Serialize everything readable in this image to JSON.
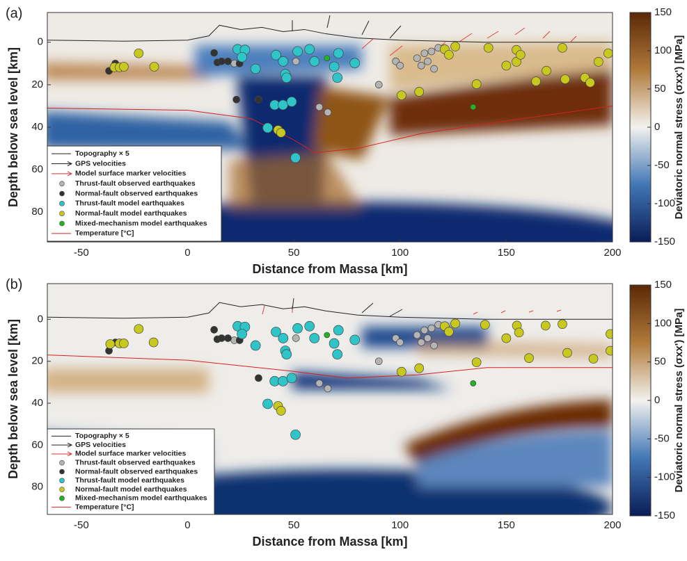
{
  "chart_data": [
    {
      "type": "scatter",
      "panel_label": "(a)",
      "x_label": "Distance from Massa [km]",
      "y_label": "Depth below sea level [km]",
      "xlim": [
        -66,
        200
      ],
      "ylim": [
        -14,
        94
      ],
      "y_reversed": true,
      "xticks": [
        -50,
        0,
        50,
        100,
        150,
        200
      ],
      "yticks": [
        0,
        20,
        40,
        60,
        80
      ],
      "colorbar": {
        "label": "Deviatoric normal stress (σxx') [MPa]",
        "lim": [
          -150,
          150
        ],
        "ticks": [
          150,
          100,
          50,
          0,
          -50,
          -100,
          -150
        ]
      },
      "lines": [
        {
          "name": "Topography × 5",
          "color": "#222222",
          "x": [
            -66,
            -30,
            0,
            10,
            15,
            25,
            35,
            45,
            55,
            65,
            80,
            100,
            140,
            200
          ],
          "values": [
            -1,
            -0.5,
            -1,
            -3,
            -8,
            -6,
            -7,
            -5,
            -6,
            -4,
            -2,
            -1,
            0,
            0
          ]
        },
        {
          "name": "Temperature [°C]",
          "color": "#d62020",
          "x": [
            -66,
            0,
            30,
            50,
            60,
            80,
            110,
            150,
            200
          ],
          "values": [
            31,
            32,
            36,
            46,
            52,
            50,
            43,
            37,
            30
          ]
        }
      ],
      "arrows": [
        {
          "name": "GPS velocities",
          "color": "#222222"
        },
        {
          "name": "Model surface marker velocities",
          "color": "#e03030"
        }
      ],
      "series": [
        {
          "name": "Thrust-fault observed earthquakes",
          "color": "#b4b4b4",
          "x": [
            111.5,
            114.8,
            113,
            116,
            110,
            118,
            98,
            100,
            90,
            62,
            66,
            51,
            22,
            108
          ],
          "values": [
            5.2,
            4.3,
            9,
            12.5,
            11,
            2.6,
            9,
            11,
            20,
            30.5,
            33,
            9,
            10,
            7.5
          ]
        },
        {
          "name": "Normal-fault observed earthquakes",
          "color": "#333333",
          "x": [
            12.5,
            14,
            16,
            19,
            24.5,
            -37,
            -34,
            23,
            33.4
          ],
          "values": [
            5,
            9.5,
            9,
            9,
            10,
            13.5,
            10,
            27,
            27
          ]
        },
        {
          "name": "Thrust-fault model earthquakes",
          "color": "#2ec4c8",
          "x": [
            23.6,
            27,
            25.6,
            32,
            41.6,
            51.8,
            45,
            46,
            46.6,
            57.4,
            59.7,
            69,
            71,
            70.5,
            78.7,
            41,
            44.9,
            49,
            37.7,
            50.8
          ],
          "values": [
            3.3,
            3.6,
            7,
            12.5,
            6,
            4.3,
            9,
            15,
            16.7,
            3.3,
            9,
            11.5,
            5.2,
            16.7,
            9.8,
            29.5,
            29.5,
            28,
            40.3,
            54.4
          ]
        },
        {
          "name": "Normal-fault model earthquakes",
          "color": "#c8c81e",
          "x": [
            -23,
            -34.4,
            -32,
            -30,
            -15.7,
            42.6,
            44,
            100.7,
            109,
            121,
            123,
            126,
            141.6,
            154.8,
            154.8,
            156.7,
            168.9,
            176.4,
            187,
            193.4,
            189.5,
            177.7,
            136,
            150,
            164,
            198
          ],
          "values": [
            5.2,
            11.8,
            11.8,
            11.5,
            11.5,
            41.3,
            42.6,
            25,
            23.3,
            3.3,
            5.9,
            2,
            2.6,
            3.6,
            9.2,
            5.9,
            13.4,
            2.6,
            16.7,
            9.2,
            19,
            17.4,
            19.7,
            11,
            18.4,
            5.2
          ]
        },
        {
          "name": "Mixed-mechanism model earthquakes",
          "color": "#22b522",
          "x": [
            134.4,
            65.6
          ],
          "values": [
            30.5,
            7.5
          ]
        }
      ]
    },
    {
      "type": "scatter",
      "panel_label": "(b)",
      "x_label": "Distance from Massa [km]",
      "y_label": "Depth below sea level [km]",
      "xlim": [
        -66,
        200
      ],
      "ylim": [
        -17,
        93
      ],
      "y_reversed": true,
      "xticks": [
        -50,
        0,
        50,
        100,
        150,
        200
      ],
      "yticks": [
        0,
        20,
        40,
        60,
        80
      ],
      "colorbar": {
        "label": "Deviatoric normal stress (σxx') [MPa]",
        "lim": [
          -150,
          150
        ],
        "ticks": [
          150,
          100,
          50,
          0,
          -50,
          -100,
          -150
        ]
      },
      "lines": [
        {
          "name": "Topography × 5",
          "color": "#222222",
          "x": [
            -66,
            -30,
            0,
            10,
            15,
            25,
            35,
            45,
            55,
            65,
            80,
            100,
            140,
            200
          ],
          "values": [
            -1,
            -0.5,
            -1,
            -3,
            -8,
            -6,
            -7,
            -5,
            -6,
            -4,
            -2,
            -1,
            0,
            0
          ]
        },
        {
          "name": "Temperature [°C]",
          "color": "#d62020",
          "x": [
            -66,
            0,
            49,
            75,
            108,
            141,
            200
          ],
          "values": [
            17,
            19.5,
            24.7,
            28,
            26.5,
            23,
            23
          ]
        }
      ],
      "arrows": [
        {
          "name": "GPS velocities",
          "color": "#222222"
        },
        {
          "name": "Model surface marker velocities",
          "color": "#e03030"
        }
      ],
      "series": [
        {
          "name": "Thrust-fault observed earthquakes",
          "color": "#b4b4b4",
          "x": [
            111.5,
            114.8,
            113,
            116,
            110,
            118,
            98,
            100,
            90,
            62,
            66,
            51,
            22,
            108
          ],
          "values": [
            5.2,
            4.3,
            9,
            12.5,
            11,
            2.6,
            9,
            11,
            20,
            30.5,
            33,
            9,
            10,
            7.5
          ]
        },
        {
          "name": "Normal-fault observed earthquakes",
          "color": "#333333",
          "x": [
            12.5,
            14,
            16,
            19,
            24.5,
            -37,
            -34,
            33.4
          ],
          "values": [
            5,
            9.5,
            9,
            9,
            10,
            15,
            11,
            28
          ]
        },
        {
          "name": "Thrust-fault model earthquakes",
          "color": "#2ec4c8",
          "x": [
            23.6,
            27,
            25.6,
            32,
            41.6,
            51.8,
            45,
            46,
            46.6,
            57.4,
            59.7,
            69,
            71,
            70.5,
            78.7,
            41,
            44.9,
            49,
            37.7,
            50.8
          ],
          "values": [
            3.3,
            3.6,
            7,
            12.5,
            6,
            4.3,
            9,
            15,
            16.7,
            3.3,
            9,
            11.5,
            5.2,
            16.7,
            9.8,
            29.5,
            29.5,
            28,
            40.3,
            55
          ]
        },
        {
          "name": "Normal-fault model earthquakes",
          "color": "#c8c81e",
          "x": [
            -23,
            -36.4,
            -32,
            -30,
            -16,
            42.6,
            44,
            100.7,
            109,
            121,
            123,
            126,
            140,
            155,
            156,
            168.5,
            176.4,
            160.7,
            178.7,
            191,
            199,
            199,
            136,
            150
          ],
          "values": [
            4.6,
            11.8,
            11.5,
            11.5,
            11,
            41.3,
            43.6,
            25,
            23.3,
            3.3,
            5.9,
            2,
            2.6,
            3,
            6.3,
            3,
            2.3,
            18.5,
            16,
            18.8,
            15,
            7,
            20.5,
            9
          ]
        },
        {
          "name": "Mixed-mechanism model earthquakes",
          "color": "#22b522",
          "x": [
            134.4,
            65.6
          ],
          "values": [
            30.5,
            7.5
          ]
        }
      ]
    }
  ]
}
